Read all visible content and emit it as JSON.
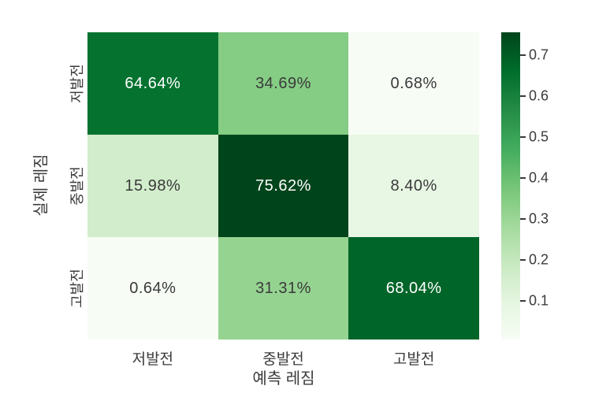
{
  "figure": {
    "background": "#ffffff"
  },
  "chart_data": {
    "type": "heatmap",
    "title": "",
    "xlabel": "예측 레짐",
    "ylabel": "실제 레짐",
    "x_categories": [
      "저발전",
      "중발전",
      "고발전"
    ],
    "y_categories": [
      "저발전",
      "중발전",
      "고발전"
    ],
    "values": [
      [
        64.64,
        34.69,
        0.68
      ],
      [
        15.98,
        75.62,
        8.4
      ],
      [
        0.64,
        31.31,
        68.04
      ]
    ],
    "cell_labels": [
      [
        "64.64%",
        "34.69%",
        "0.68%"
      ],
      [
        "15.98%",
        "75.62%",
        "8.40%"
      ],
      [
        "0.64%",
        "31.31%",
        "68.04%"
      ]
    ],
    "value_unit": "percent",
    "vmin": 0.0064,
    "vmax": 0.7562,
    "colormap": {
      "name": "Greens",
      "stops": [
        "#f7fcf5",
        "#e5f5e0",
        "#c7e9c0",
        "#a1d99b",
        "#74c476",
        "#41ab5d",
        "#238b45",
        "#006d2c",
        "#00441b"
      ]
    },
    "colorbar": {
      "tick_labels": [
        "0.1",
        "0.2",
        "0.3",
        "0.4",
        "0.5",
        "0.6",
        "0.7"
      ],
      "tick_values": [
        0.1,
        0.2,
        0.3,
        0.4,
        0.5,
        0.6,
        0.7
      ],
      "position": "right"
    },
    "text_colors": {
      "on_dark": "#ffffff",
      "on_light": "#3a3a3a"
    },
    "grid": false,
    "legend": false
  }
}
